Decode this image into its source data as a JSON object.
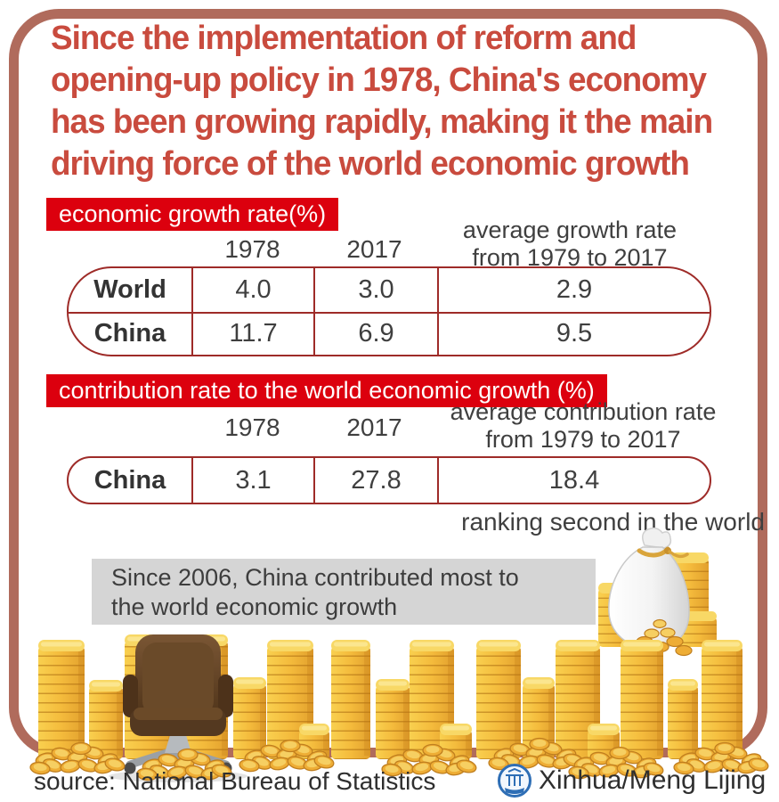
{
  "title": "Since the implementation of reform and\nopening-up policy in 1978, China's economy\nhas been growing rapidly, making it the main\ndriving force of the world economic growth",
  "section1": {
    "banner": "economic growth rate(%)",
    "col_headers": [
      "1978",
      "2017",
      "average growth rate\nfrom 1979 to 2017"
    ],
    "rows": [
      {
        "label": "World",
        "values": [
          "4.0",
          "3.0",
          "2.9"
        ]
      },
      {
        "label": "China",
        "values": [
          "11.7",
          "6.9",
          "9.5"
        ]
      }
    ]
  },
  "section2": {
    "banner": "contribution rate to the world economic growth (%)",
    "col_headers": [
      "1978",
      "2017",
      "average contribution rate\nfrom 1979 to 2017"
    ],
    "rows": [
      {
        "label": "China",
        "values": [
          "3.1",
          "27.8",
          "18.4"
        ]
      }
    ],
    "note": "ranking second in the world"
  },
  "highlight": {
    "text": "Since 2006, China contributed most to\nthe world economic growth"
  },
  "footer": {
    "source": "source: National Bureau of Statistics",
    "credit": "Xinhua/Meng Lijing"
  },
  "icons": [
    "money-bag-icon",
    "coin-stack",
    "scattered-coins",
    "office-chair-icon",
    "xinhua-logo-icon"
  ],
  "colors": {
    "frame": "#b06b5c",
    "title_red": "#c94b3e",
    "banner_bg": "#dc000e",
    "banner_text": "#ffffff",
    "table_border": "#9e2b28",
    "text_dark": "#3f3f3f",
    "highlight_bg": "#d5d5d5",
    "coin_gold": "#f4bb3c",
    "coin_gold_light": "#f8d866",
    "coin_gold_dark": "#d6952b",
    "chair_brown": "#63452a",
    "base_gray": "#9ba0a5",
    "logo_blue": "#2e6eb5"
  },
  "chart_data": [
    {
      "type": "table",
      "title": "economic growth rate(%)",
      "columns": [
        "",
        "1978",
        "2017",
        "average growth rate from 1979 to 2017"
      ],
      "rows": [
        [
          "World",
          4.0,
          3.0,
          2.9
        ],
        [
          "China",
          11.7,
          6.9,
          9.5
        ]
      ]
    },
    {
      "type": "table",
      "title": "contribution rate to the world economic growth (%)",
      "columns": [
        "",
        "1978",
        "2017",
        "average contribution rate from 1979 to 2017"
      ],
      "rows": [
        [
          "China",
          3.1,
          27.8,
          18.4
        ]
      ],
      "annotation": "ranking second in the world"
    }
  ]
}
